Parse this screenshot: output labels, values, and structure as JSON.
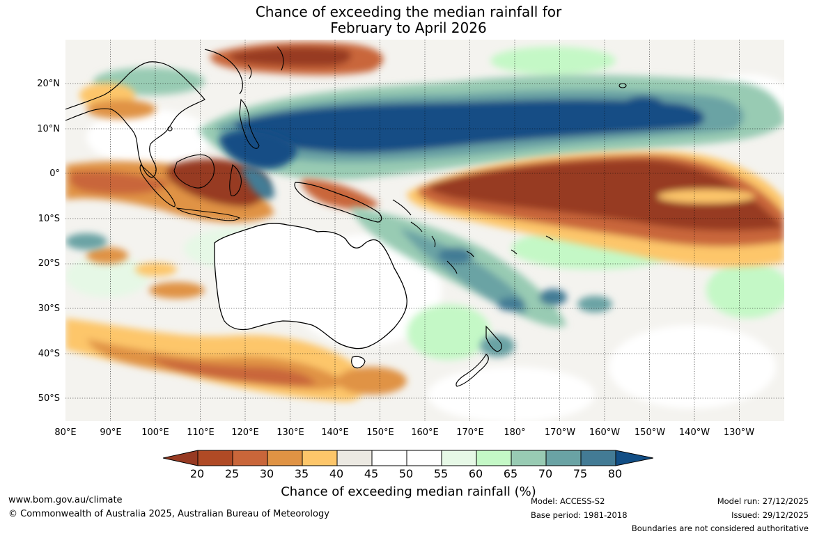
{
  "title": {
    "line1": "Chance of exceeding the median rainfall for",
    "line2": "February to April 2026"
  },
  "map": {
    "latitude_labels": [
      "20°N",
      "10°N",
      "0°",
      "10°S",
      "20°S",
      "30°S",
      "40°S",
      "50°S"
    ],
    "longitude_labels": [
      "80°E",
      "90°E",
      "100°E",
      "110°E",
      "120°E",
      "130°E",
      "140°E",
      "150°E",
      "160°E",
      "170°E",
      "180°",
      "170°W",
      "160°W",
      "150°W",
      "140°W",
      "130°W"
    ]
  },
  "colorbar": {
    "ticks": [
      "20",
      "25",
      "30",
      "35",
      "40",
      "45",
      "50",
      "55",
      "60",
      "65",
      "70",
      "75",
      "80"
    ],
    "colors": [
      "#973a22",
      "#b04a25",
      "#c9663a",
      "#e09344",
      "#fdc66a",
      "#ece9e2",
      "#ffffff",
      "#ffffff",
      "#e6f8e6",
      "#c4f8c6",
      "#98cbb3",
      "#6aa3a4",
      "#437b95",
      "#124e85"
    ],
    "title": "Chance of exceeding median rainfall (%)"
  },
  "footer": {
    "website": "www.bom.gov.au/climate",
    "copyright": "© Commonwealth of Australia 2025, Australian Bureau of Meteorology",
    "model": "Model: ACCESS-S2",
    "base_period": "Base period: 1981-2018",
    "model_run": "Model run: 27/12/2025",
    "issued": "Issued: 29/12/2025",
    "disclaimer": "Boundaries are not considered authoritative"
  }
}
